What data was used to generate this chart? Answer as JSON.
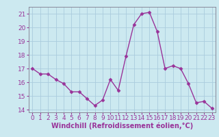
{
  "x": [
    0,
    1,
    2,
    3,
    4,
    5,
    6,
    7,
    8,
    9,
    10,
    11,
    12,
    13,
    14,
    15,
    16,
    17,
    18,
    19,
    20,
    21,
    22,
    23
  ],
  "y": [
    17.0,
    16.6,
    16.6,
    16.2,
    15.9,
    15.3,
    15.3,
    14.8,
    14.3,
    14.7,
    16.2,
    15.4,
    17.9,
    20.2,
    21.0,
    21.1,
    19.7,
    17.0,
    17.2,
    17.0,
    15.9,
    14.5,
    14.6,
    14.1
  ],
  "line_color": "#993399",
  "marker": "D",
  "marker_size": 2.5,
  "bg_color": "#cce9f0",
  "grid_color": "#aaccdd",
  "xlabel": "Windchill (Refroidissement éolien,°C)",
  "ylim": [
    13.8,
    21.5
  ],
  "xlim": [
    -0.5,
    23.5
  ],
  "yticks": [
    14,
    15,
    16,
    17,
    18,
    19,
    20,
    21
  ],
  "xticks": [
    0,
    1,
    2,
    3,
    4,
    5,
    6,
    7,
    8,
    9,
    10,
    11,
    12,
    13,
    14,
    15,
    16,
    17,
    18,
    19,
    20,
    21,
    22,
    23
  ],
  "label_fontsize": 7,
  "tick_fontsize": 6.5,
  "spine_color": "#888899"
}
